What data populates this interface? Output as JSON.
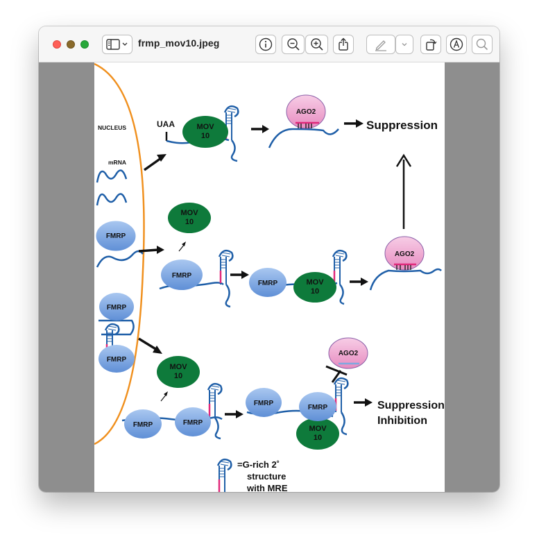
{
  "window": {
    "title": "frmp_mov10.jpeg"
  },
  "toolbar": {
    "icons": [
      "sidebar-icon",
      "chevron-down-icon",
      "info-icon",
      "zoom-out-icon",
      "zoom-in-icon",
      "share-icon",
      "pencil-icon",
      "chevron-down-icon",
      "rotate-icon",
      "markup-icon",
      "search-icon"
    ]
  },
  "colors": {
    "nucleus": "#f0901e",
    "mov10": "#0e7a3b",
    "fmrp": "#7ea8e0",
    "ago2": "#f0a9d0",
    "mrna": "#1f5fa8",
    "mre": "#e0287a"
  },
  "diagram": {
    "nucleus_label": "NUCLEUS",
    "mrna_label": "mRNA",
    "uaa_label": "UAA",
    "mov10_line1": "MOV",
    "mov10_line2": "10",
    "fmrp_label": "FMRP",
    "ago2_label": "AGO2",
    "suppression_label": "Suppression",
    "suppression_inhibition_line1": "Suppression",
    "suppression_inhibition_line2": "Inhibition",
    "legend_line1": "=G-rich 2˚",
    "legend_line2": "structure",
    "legend_line3": "with MRE"
  }
}
